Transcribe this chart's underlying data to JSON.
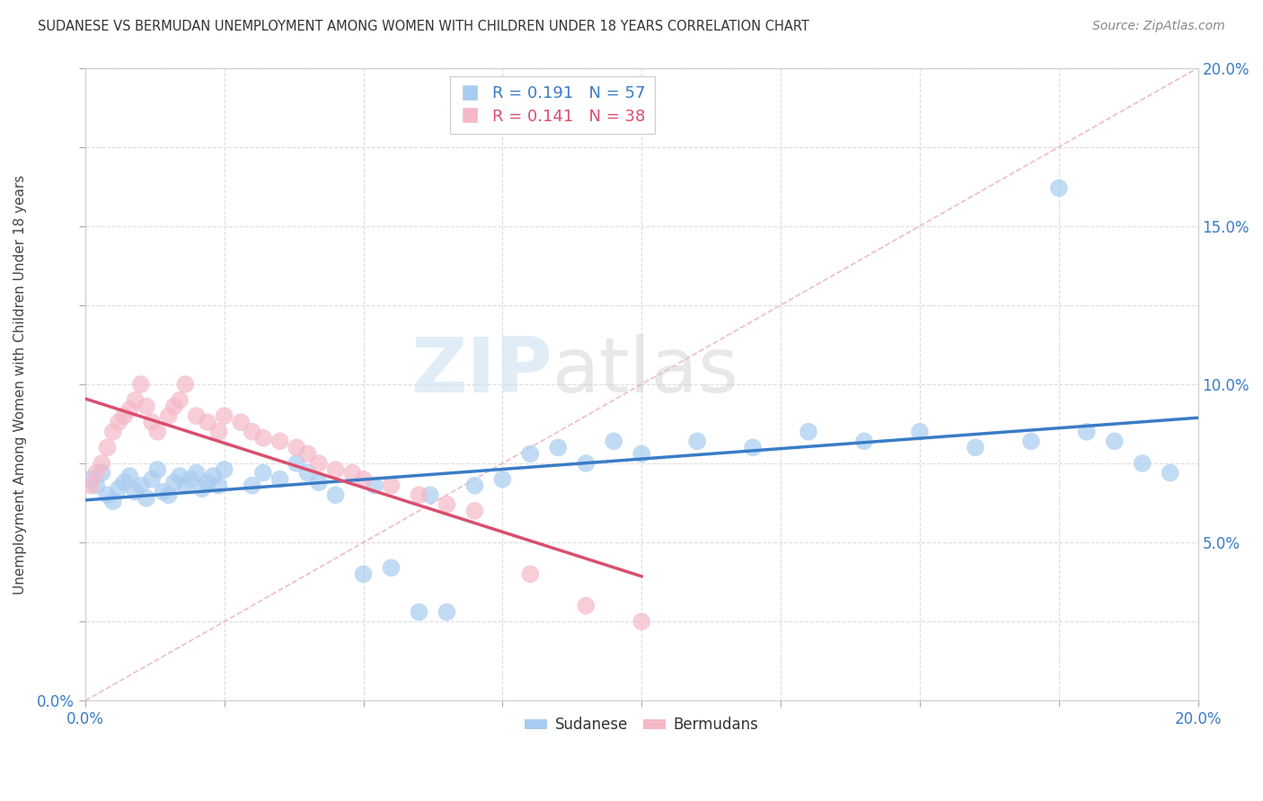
{
  "title": "SUDANESE VS BERMUDAN UNEMPLOYMENT AMONG WOMEN WITH CHILDREN UNDER 18 YEARS CORRELATION CHART",
  "source": "Source: ZipAtlas.com",
  "ylabel_label": "Unemployment Among Women with Children Under 18 years",
  "xlim": [
    0.0,
    0.2
  ],
  "ylim": [
    0.0,
    0.2
  ],
  "sudanese_R": "0.191",
  "sudanese_N": "57",
  "bermudans_R": "0.141",
  "bermudans_N": "38",
  "sudanese_color": "#A8CCF0",
  "bermudans_color": "#F5B8C8",
  "sudanese_line_color": "#3A7CC7",
  "bermudans_line_color": "#D94F6E",
  "background_color": "#FFFFFF",
  "grid_color": "#DDDDDD",
  "sudanese_x": [
    0.001,
    0.002,
    0.003,
    0.004,
    0.005,
    0.006,
    0.007,
    0.008,
    0.009,
    0.01,
    0.011,
    0.012,
    0.013,
    0.014,
    0.015,
    0.016,
    0.017,
    0.018,
    0.019,
    0.02,
    0.021,
    0.022,
    0.023,
    0.024,
    0.025,
    0.03,
    0.032,
    0.035,
    0.038,
    0.04,
    0.042,
    0.045,
    0.05,
    0.052,
    0.055,
    0.06,
    0.062,
    0.065,
    0.07,
    0.075,
    0.08,
    0.085,
    0.09,
    0.095,
    0.1,
    0.11,
    0.12,
    0.13,
    0.14,
    0.15,
    0.16,
    0.17,
    0.175,
    0.18,
    0.185,
    0.19,
    0.195
  ],
  "sudanese_y": [
    0.07,
    0.068,
    0.072,
    0.065,
    0.063,
    0.067,
    0.069,
    0.071,
    0.066,
    0.068,
    0.064,
    0.07,
    0.073,
    0.066,
    0.065,
    0.069,
    0.071,
    0.068,
    0.07,
    0.072,
    0.067,
    0.069,
    0.071,
    0.068,
    0.073,
    0.068,
    0.072,
    0.07,
    0.075,
    0.072,
    0.069,
    0.065,
    0.04,
    0.068,
    0.042,
    0.028,
    0.065,
    0.028,
    0.068,
    0.07,
    0.078,
    0.08,
    0.075,
    0.082,
    0.078,
    0.082,
    0.08,
    0.085,
    0.082,
    0.085,
    0.08,
    0.082,
    0.162,
    0.085,
    0.082,
    0.075,
    0.072
  ],
  "bermudans_x": [
    0.001,
    0.002,
    0.003,
    0.004,
    0.005,
    0.006,
    0.007,
    0.008,
    0.009,
    0.01,
    0.011,
    0.012,
    0.013,
    0.015,
    0.016,
    0.017,
    0.018,
    0.02,
    0.022,
    0.024,
    0.025,
    0.028,
    0.03,
    0.032,
    0.035,
    0.038,
    0.04,
    0.042,
    0.045,
    0.048,
    0.05,
    0.055,
    0.06,
    0.065,
    0.07,
    0.08,
    0.09,
    0.1
  ],
  "bermudans_y": [
    0.068,
    0.072,
    0.075,
    0.08,
    0.085,
    0.088,
    0.09,
    0.092,
    0.095,
    0.1,
    0.093,
    0.088,
    0.085,
    0.09,
    0.093,
    0.095,
    0.1,
    0.09,
    0.088,
    0.085,
    0.09,
    0.088,
    0.085,
    0.083,
    0.082,
    0.08,
    0.078,
    0.075,
    0.073,
    0.072,
    0.07,
    0.068,
    0.065,
    0.062,
    0.06,
    0.04,
    0.03,
    0.025
  ]
}
